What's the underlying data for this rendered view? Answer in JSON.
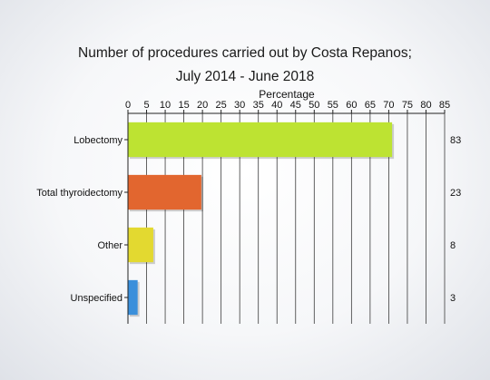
{
  "chart_data": {
    "type": "bar",
    "orientation": "horizontal",
    "title": "Number of procedures carried out by Costa Repanos;",
    "subtitle": "July 2014 - June 2018",
    "xlabel": "Percentage",
    "ylabel": "",
    "xlim": [
      0,
      85
    ],
    "x_ticks": [
      0,
      5,
      10,
      15,
      20,
      25,
      30,
      35,
      40,
      45,
      50,
      55,
      60,
      65,
      70,
      75,
      80,
      85
    ],
    "grid": true,
    "legend": "none",
    "categories": [
      "Lobectomy",
      "Total thyroidectomy",
      "Other",
      "Unspecified"
    ],
    "values": [
      70.9,
      19.7,
      6.8,
      2.6
    ],
    "counts": [
      "83",
      "23",
      "8",
      "3"
    ],
    "colors": [
      "#bde332",
      "#e2662f",
      "#e3d930",
      "#3a8fdb"
    ]
  }
}
